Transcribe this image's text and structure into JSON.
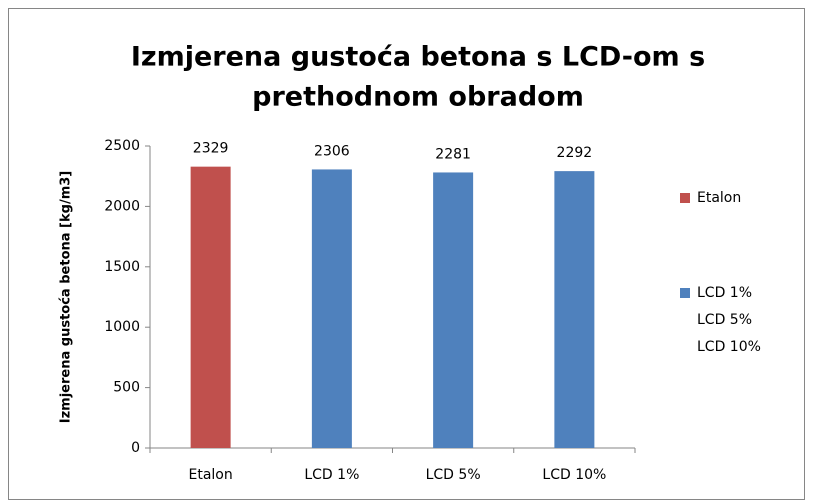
{
  "chart_data": {
    "type": "bar",
    "title": [
      "Izmjerena gustoća betona s LCD-om s",
      "prethodnom obradom"
    ],
    "ylabel": "Izmjerena gustoća betona [kg/m3]",
    "categories": [
      "Etalon",
      "LCD 1%",
      "LCD 5%",
      "LCD 10%"
    ],
    "values": [
      2329,
      2306,
      2281,
      2292
    ],
    "colors": [
      "#c0504d",
      "#4f81bd",
      "#4f81bd",
      "#4f81bd"
    ],
    "ylim": [
      0,
      2500
    ],
    "yticks": [
      0,
      500,
      1000,
      1500,
      2000,
      2500
    ],
    "legend": [
      {
        "name": "Etalon",
        "color": "#c0504d"
      },
      {
        "name": "LCD 1%",
        "color": "#4f81bd"
      },
      {
        "name": "LCD 5%"
      },
      {
        "name": "LCD 10%"
      }
    ]
  }
}
